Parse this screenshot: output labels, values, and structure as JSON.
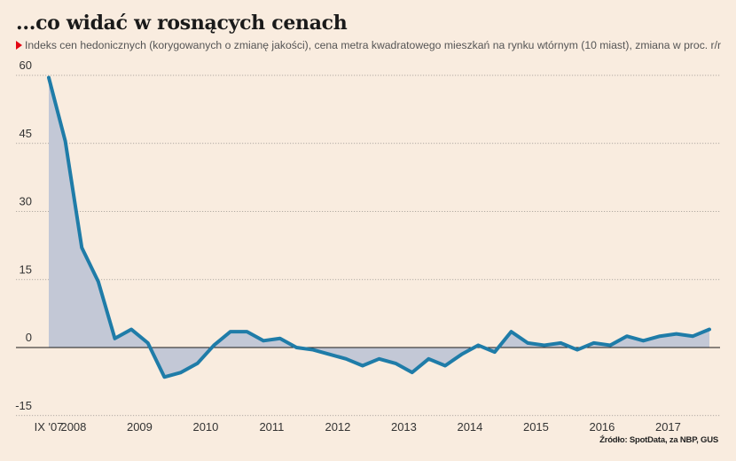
{
  "header": {
    "title": "...co widać w rosnących cenach",
    "subtitle": "Indeks cen hedonicznych (korygowanych o zmianę jakości), cena metra kwadratowego mieszkań na rynku wtórnym (10 miast), zmiana w proc. r/r",
    "source": "Źródło: SpotData, za NBP, GUS"
  },
  "colors": {
    "line": "#1f7ca8",
    "area": "#c3c8d6",
    "background": "#f9ecdf",
    "marker": "#e30613"
  },
  "chart_data": {
    "type": "area",
    "title": "...co widać w rosnących cenach",
    "subtitle": "Indeks cen hedonicznych (korygowanych o zmianę jakości), cena metra kwadratowego mieszkań na rynku wtórnym (10 miast), zmiana w proc. r/r",
    "ylim": [
      -15,
      60
    ],
    "yticks": [
      60,
      45,
      30,
      15,
      0,
      -15
    ],
    "xlim": [
      0,
      41
    ],
    "xticks": [
      {
        "label": "IX '07",
        "x": 0
      },
      {
        "label": "2008",
        "x": 1.5
      },
      {
        "label": "2009",
        "x": 5.5
      },
      {
        "label": "2010",
        "x": 9.5
      },
      {
        "label": "2011",
        "x": 13.5
      },
      {
        "label": "2012",
        "x": 17.5
      },
      {
        "label": "2013",
        "x": 21.5
      },
      {
        "label": "2014",
        "x": 25.5
      },
      {
        "label": "2015",
        "x": 29.5
      },
      {
        "label": "2016",
        "x": 33.5
      },
      {
        "label": "2017",
        "x": 37.5
      }
    ],
    "grid": true,
    "series": [
      {
        "values": [
          59.5,
          45.5,
          22,
          14.5,
          2,
          4,
          1,
          -6.5,
          -5.5,
          -3.5,
          0.5,
          3.5,
          3.5,
          1.5,
          2,
          0,
          -0.5,
          -1.5,
          -2.5,
          -4,
          -2.5,
          -3.5,
          -5.5,
          -2.5,
          -4,
          -1.5,
          0.5,
          -1,
          3.5,
          1,
          0.5,
          1,
          -0.5,
          1,
          0.5,
          2.5,
          1.5,
          2.5,
          3,
          2.5,
          4
        ]
      }
    ]
  }
}
